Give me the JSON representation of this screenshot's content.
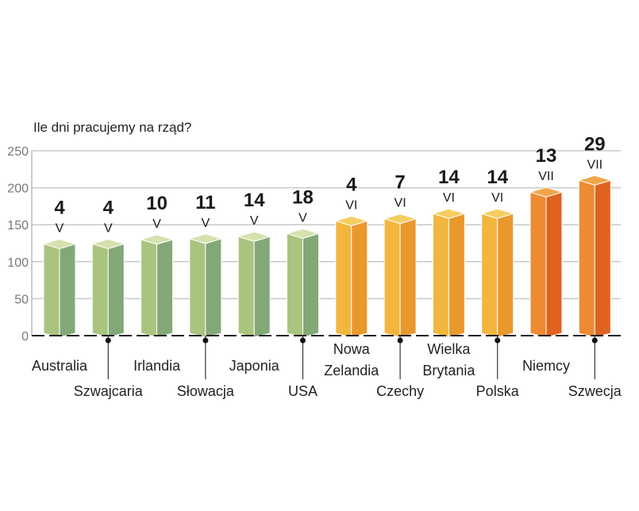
{
  "chart_data": {
    "type": "bar",
    "title": "Ile dni pracujemy na rząd?",
    "xlabel": "",
    "ylabel": "",
    "ylim": [
      0,
      250
    ],
    "yticks": [
      0,
      50,
      100,
      150,
      200,
      250
    ],
    "grid": true,
    "categories": [
      "Australia",
      "Szwajcaria",
      "Irlandia",
      "Słowacja",
      "Japonia",
      "USA",
      "Nowa Zelandia",
      "Czechy",
      "Wielka Brytania",
      "Polska",
      "Niemcy",
      "Szwecja"
    ],
    "category_lines": [
      [
        "Australia"
      ],
      [
        "Szwajcaria"
      ],
      [
        "Irlandia"
      ],
      [
        "Słowacja"
      ],
      [
        "Japonia"
      ],
      [
        "USA"
      ],
      [
        "Nowa",
        "Zelandia"
      ],
      [
        "Czechy"
      ],
      [
        "Wielka",
        "Brytania"
      ],
      [
        "Polska"
      ],
      [
        "Niemcy"
      ],
      [
        "Szwecja"
      ]
    ],
    "values": [
      124,
      124,
      130,
      131,
      134,
      138,
      155,
      158,
      165,
      165,
      194,
      210
    ],
    "data_labels": [
      {
        "day": "4",
        "month": "V"
      },
      {
        "day": "4",
        "month": "V"
      },
      {
        "day": "10",
        "month": "V"
      },
      {
        "day": "11",
        "month": "V"
      },
      {
        "day": "14",
        "month": "V"
      },
      {
        "day": "18",
        "month": "V"
      },
      {
        "day": "4",
        "month": "VI"
      },
      {
        "day": "7",
        "month": "VI"
      },
      {
        "day": "14",
        "month": "VI"
      },
      {
        "day": "14",
        "month": "VI"
      },
      {
        "day": "13",
        "month": "VII"
      },
      {
        "day": "29",
        "month": "VII"
      }
    ],
    "bar_groups": [
      "green",
      "green",
      "green",
      "green",
      "green",
      "green",
      "yellow",
      "yellow",
      "yellow",
      "yellow",
      "orange",
      "orange"
    ],
    "colors": {
      "green": {
        "top": "#d4e2ae",
        "front": "#a9c47f",
        "side": "#83a877"
      },
      "yellow": {
        "top": "#f6cd62",
        "front": "#f2b63e",
        "side": "#e9982c"
      },
      "orange": {
        "top": "#f2a548",
        "front": "#ee8a32",
        "side": "#e0621f"
      }
    }
  }
}
